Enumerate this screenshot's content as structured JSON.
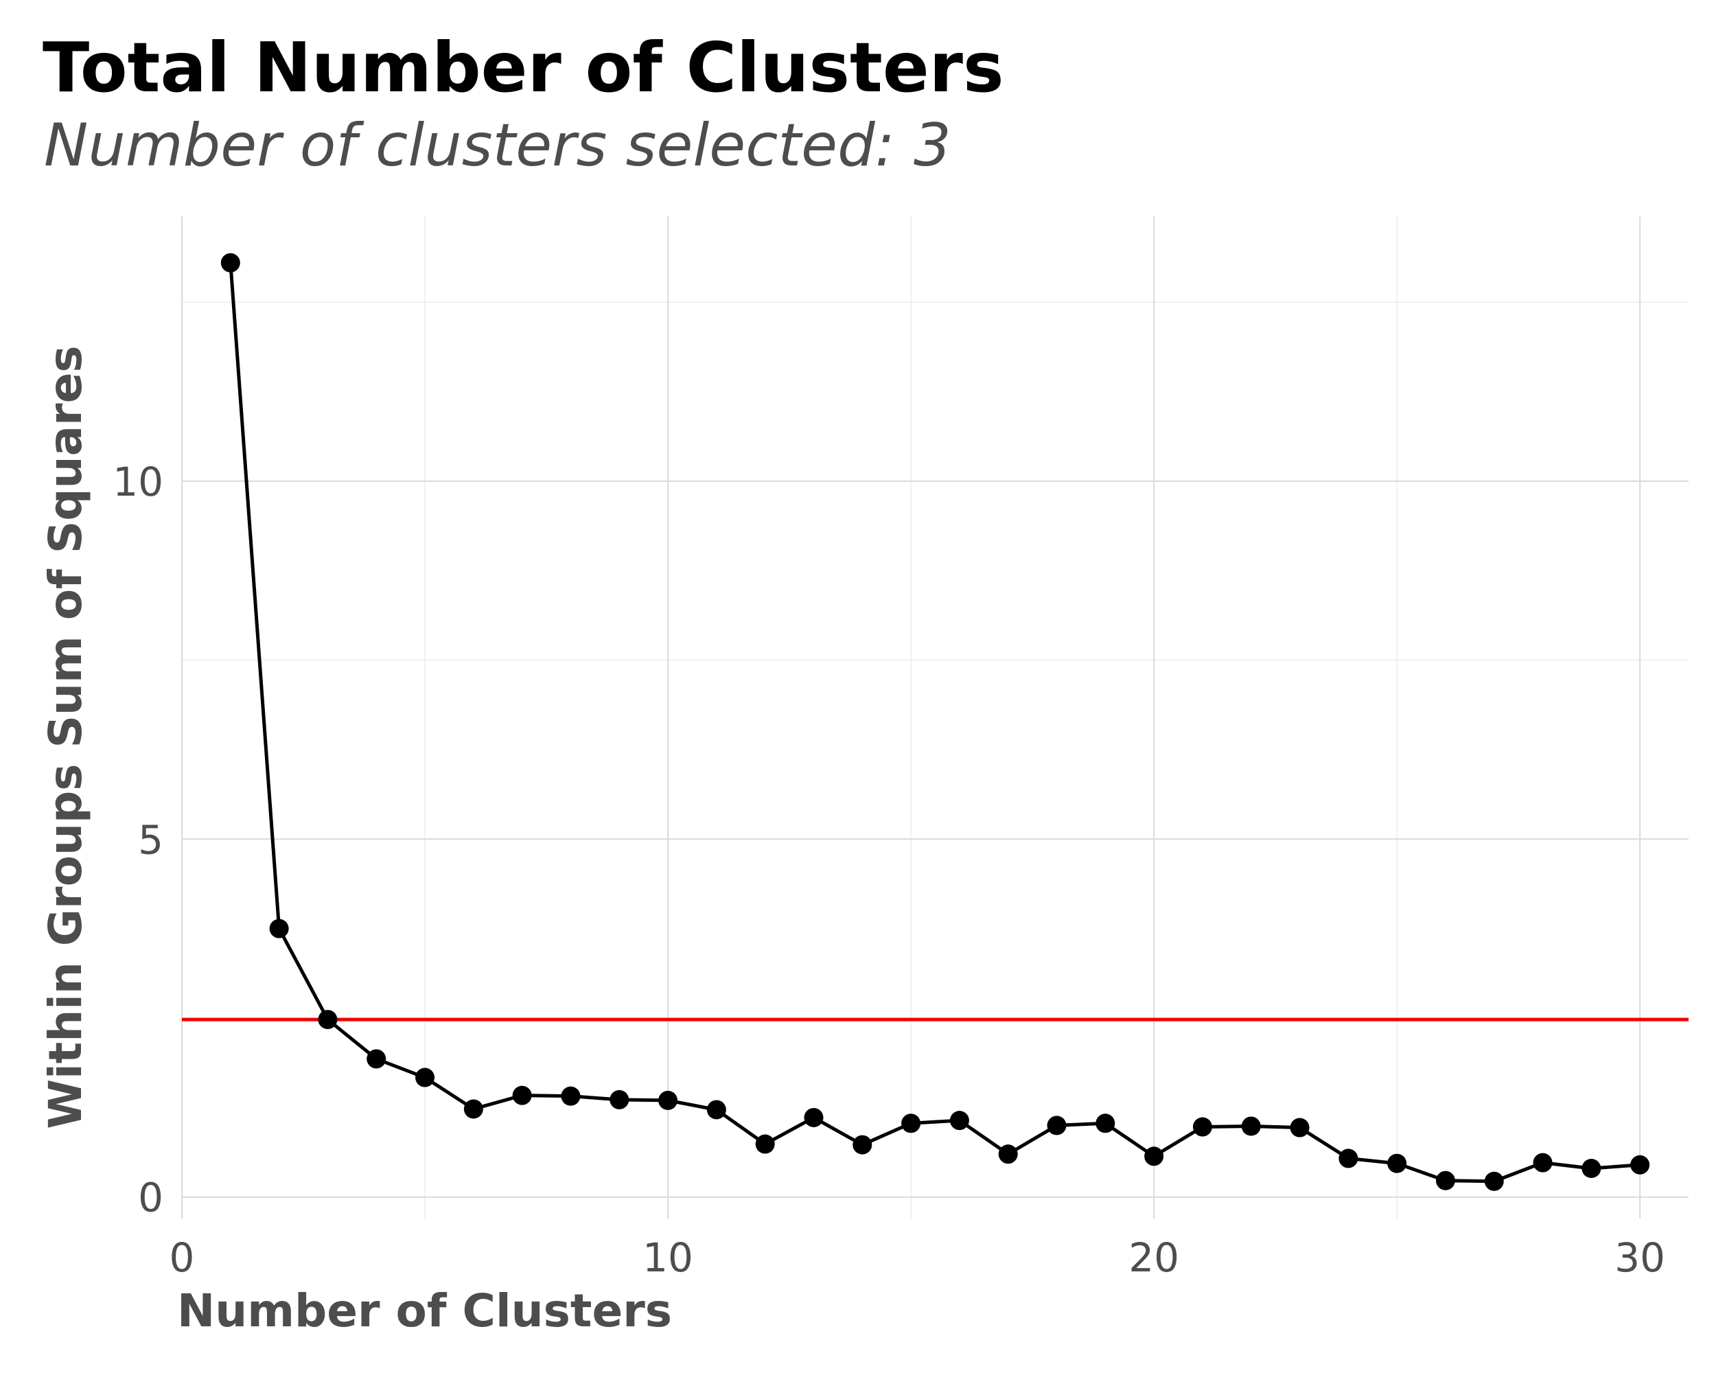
{
  "chart_data": {
    "type": "line",
    "title": "Total Number of Clusters",
    "subtitle": "Number of clusters selected: 3",
    "xlabel": "Number of Clusters",
    "ylabel": "Within Groups Sum of Squares",
    "xlim": [
      0,
      31
    ],
    "ylim": [
      -0.3,
      13.7
    ],
    "x_ticks": [
      0,
      10,
      20,
      30
    ],
    "y_ticks": [
      0,
      5,
      10
    ],
    "grid": true,
    "legend": "none",
    "line_color": "#000000",
    "hline": {
      "y": 2.48,
      "color": "#ee0000"
    },
    "series": [
      {
        "x": [
          1,
          2,
          3,
          4,
          5,
          6,
          7,
          8,
          9,
          10,
          11,
          12,
          13,
          14,
          15,
          16,
          17,
          18,
          19,
          20,
          21,
          22,
          23,
          24,
          25,
          26,
          27,
          28,
          29,
          30
        ],
        "y": [
          13.05,
          3.75,
          2.48,
          1.93,
          1.67,
          1.23,
          1.42,
          1.41,
          1.36,
          1.35,
          1.22,
          0.74,
          1.11,
          0.73,
          1.03,
          1.07,
          0.6,
          1.0,
          1.03,
          0.57,
          0.98,
          0.99,
          0.97,
          0.54,
          0.47,
          0.23,
          0.22,
          0.48,
          0.4,
          0.45
        ]
      }
    ]
  }
}
